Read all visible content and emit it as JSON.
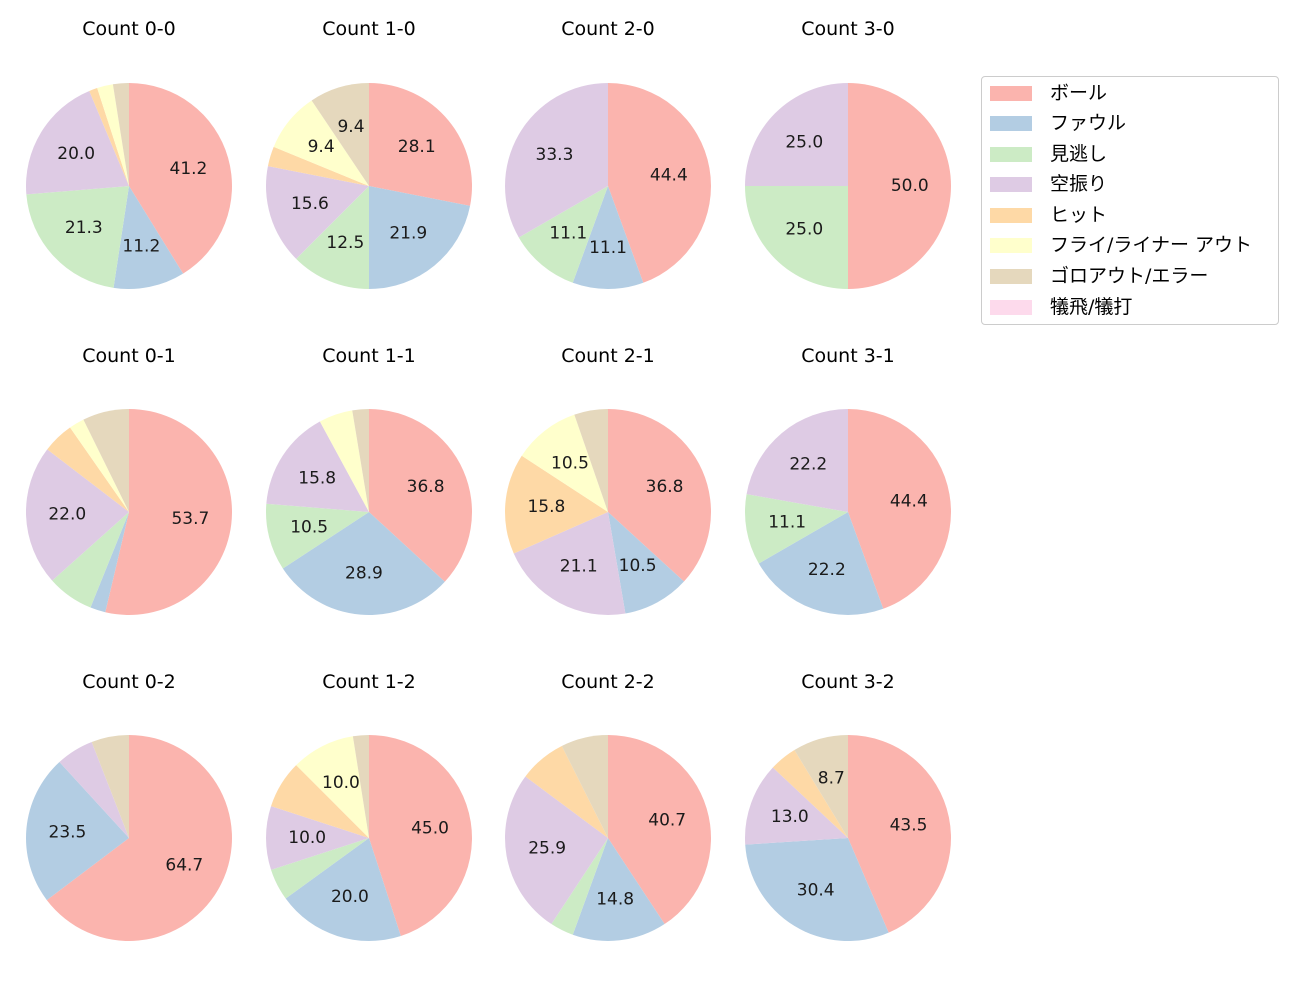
{
  "chart_data": {
    "type": "pie",
    "title": "",
    "legend": {
      "position": "upper right",
      "entries": [
        "ボール",
        "ファウル",
        "見逃し",
        "空振り",
        "ヒット",
        "フライ/ライナー アウト",
        "ゴロアウト/エラー",
        "犠飛/犠打"
      ]
    },
    "colors": [
      "#fbb4ae",
      "#b3cde3",
      "#ccebc5",
      "#decbe4",
      "#fed9a6",
      "#ffffcc",
      "#e5d8bd",
      "#fddaec"
    ],
    "categories": [
      "ボール",
      "ファウル",
      "見逃し",
      "空振り",
      "ヒット",
      "フライ/ライナー アウト",
      "ゴロアウト/エラー",
      "犠飛/犠打"
    ],
    "label_threshold_note": "Percent labels shown only on slices >= ~8%",
    "pies": [
      {
        "title": "Count 0-0",
        "values": [
          41.2,
          11.2,
          21.3,
          20.0,
          1.3,
          2.5,
          2.5,
          0
        ],
        "labels": [
          "41.2",
          "11.2",
          "21.3",
          "20.0",
          "",
          "",
          "",
          ""
        ]
      },
      {
        "title": "Count 1-0",
        "values": [
          28.1,
          21.9,
          12.5,
          15.6,
          3.1,
          9.4,
          9.4,
          0
        ],
        "labels": [
          "28.1",
          "21.9",
          "12.5",
          "15.6",
          "",
          "9.4",
          "9.4",
          ""
        ]
      },
      {
        "title": "Count 2-0",
        "values": [
          44.4,
          11.1,
          11.1,
          33.3,
          0,
          0,
          0,
          0
        ],
        "labels": [
          "44.4",
          "11.1",
          "11.1",
          "33.3",
          "",
          "",
          "",
          ""
        ]
      },
      {
        "title": "Count 3-0",
        "values": [
          50.0,
          0,
          25.0,
          25.0,
          0,
          0,
          0,
          0
        ],
        "labels": [
          "50.0",
          "",
          "25.0",
          "25.0",
          "",
          "",
          "",
          ""
        ]
      },
      {
        "title": "Count 0-1",
        "values": [
          53.7,
          2.4,
          7.3,
          22.0,
          4.9,
          2.4,
          7.3,
          0
        ],
        "labels": [
          "53.7",
          "",
          "",
          "22.0",
          "",
          "",
          "",
          ""
        ]
      },
      {
        "title": "Count 1-1",
        "values": [
          36.8,
          28.9,
          10.5,
          15.8,
          0,
          5.3,
          2.6,
          0
        ],
        "labels": [
          "36.8",
          "28.9",
          "10.5",
          "15.8",
          "",
          "",
          "",
          ""
        ]
      },
      {
        "title": "Count 2-1",
        "values": [
          36.8,
          10.5,
          0,
          21.1,
          15.8,
          10.5,
          5.3,
          0
        ],
        "labels": [
          "36.8",
          "10.5",
          "",
          "21.1",
          "15.8",
          "10.5",
          "",
          ""
        ]
      },
      {
        "title": "Count 3-1",
        "values": [
          44.4,
          22.2,
          11.1,
          22.2,
          0,
          0,
          0,
          0
        ],
        "labels": [
          "44.4",
          "22.2",
          "11.1",
          "22.2",
          "",
          "",
          "",
          ""
        ]
      },
      {
        "title": "Count 0-2",
        "values": [
          64.7,
          23.5,
          0,
          5.9,
          0,
          0,
          5.9,
          0
        ],
        "labels": [
          "64.7",
          "23.5",
          "",
          "",
          "",
          "",
          "",
          ""
        ]
      },
      {
        "title": "Count 1-2",
        "values": [
          45.0,
          20.0,
          5.0,
          10.0,
          7.5,
          10.0,
          2.5,
          0
        ],
        "labels": [
          "45.0",
          "20.0",
          "",
          "10.0",
          "",
          "10.0",
          "",
          ""
        ]
      },
      {
        "title": "Count 2-2",
        "values": [
          40.7,
          14.8,
          3.7,
          25.9,
          7.4,
          0,
          7.4,
          0
        ],
        "labels": [
          "40.7",
          "14.8",
          "",
          "25.9",
          "",
          "",
          "",
          ""
        ]
      },
      {
        "title": "Count 3-2",
        "values": [
          43.5,
          30.4,
          0,
          13.0,
          4.3,
          0,
          8.7,
          0
        ],
        "labels": [
          "43.5",
          "30.4",
          "",
          "13.0",
          "",
          "",
          "8.7",
          ""
        ]
      }
    ]
  }
}
